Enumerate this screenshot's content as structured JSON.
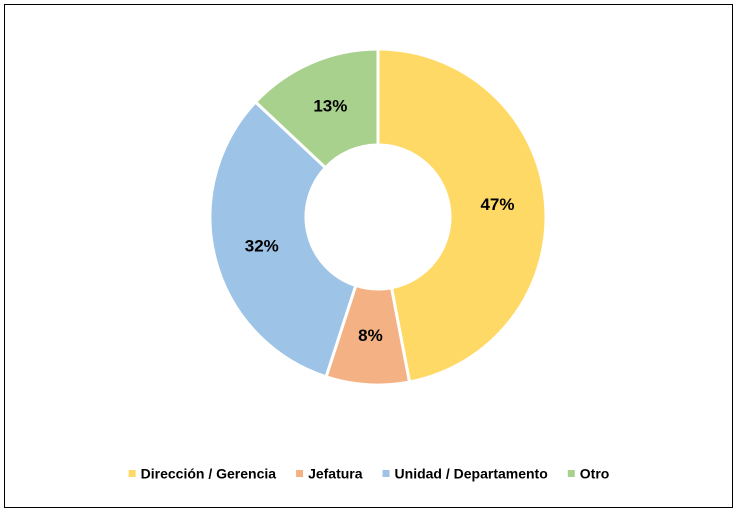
{
  "chart_data": {
    "type": "pie",
    "donut": true,
    "categories": [
      "Dirección / Gerencia",
      "Jefatura",
      "Unidad / Departamento",
      "Otro"
    ],
    "values": [
      47,
      8,
      32,
      13
    ],
    "value_labels": [
      "47%",
      "8%",
      "32%",
      "13%"
    ],
    "colors": [
      "#FFD966",
      "#F4B183",
      "#9DC3E6",
      "#A9D18E"
    ],
    "legend": "bottom"
  }
}
